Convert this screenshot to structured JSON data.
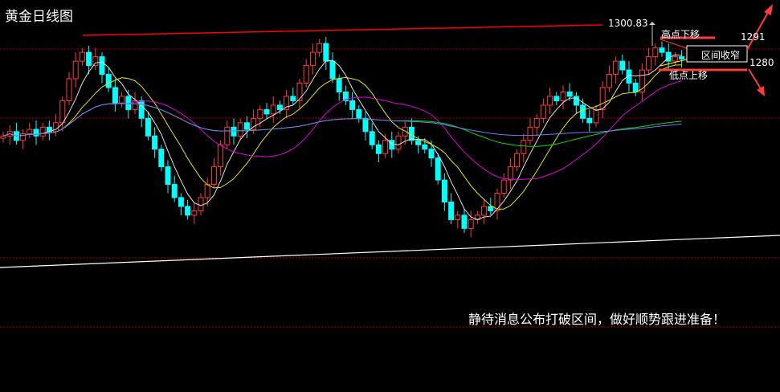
{
  "title": "黄金日线图",
  "note": "静待消息公布打破区间，做好顺势跟进准备！",
  "annotations": {
    "high_value": "1300.83",
    "highs_lower": "高点下移",
    "lows_higher": "低点上移",
    "range_narrowing": "区间收窄",
    "upper_level": "1291",
    "lower_level": "1280"
  },
  "colors": {
    "up": "#ff3b3b",
    "down": "#00ffff",
    "ma5": "#e0e0e0",
    "ma10": "#e6e600",
    "ma20": "#e000e0",
    "ma60": "#00dd00",
    "ma120": "#7777ff",
    "resistance": "#ff0000",
    "support": "#ffffff"
  },
  "chart_data": {
    "type": "candlestick",
    "title": "黄金日线图",
    "closes": [
      1250,
      1252,
      1248,
      1251,
      1253,
      1250,
      1254,
      1252,
      1256,
      1266,
      1276,
      1284,
      1288,
      1282,
      1286,
      1278,
      1272,
      1265,
      1268,
      1262,
      1266,
      1258,
      1250,
      1244,
      1236,
      1228,
      1222,
      1218,
      1214,
      1216,
      1222,
      1228,
      1236,
      1246,
      1254,
      1250,
      1256,
      1253,
      1258,
      1262,
      1260,
      1264,
      1262,
      1268,
      1266,
      1274,
      1282,
      1288,
      1292,
      1284,
      1276,
      1270,
      1266,
      1262,
      1258,
      1252,
      1246,
      1242,
      1248,
      1244,
      1250,
      1254,
      1248,
      1246,
      1244,
      1240,
      1230,
      1220,
      1212,
      1214,
      1208,
      1212,
      1214,
      1218,
      1216,
      1224,
      1230,
      1236,
      1242,
      1248,
      1254,
      1258,
      1264,
      1268,
      1266,
      1270,
      1268,
      1264,
      1258,
      1256,
      1262,
      1272,
      1278,
      1284,
      1280,
      1274,
      1270,
      1280,
      1286,
      1290,
      1288,
      1284,
      1286,
      1285
    ],
    "moving_averages": [
      5,
      10,
      20,
      60,
      120
    ],
    "resistance_line": [
      1295.7,
      1300.83
    ],
    "support_line": [
      1190,
      1204.8
    ],
    "levels": [
      1291,
      1280
    ],
    "grid": true
  }
}
